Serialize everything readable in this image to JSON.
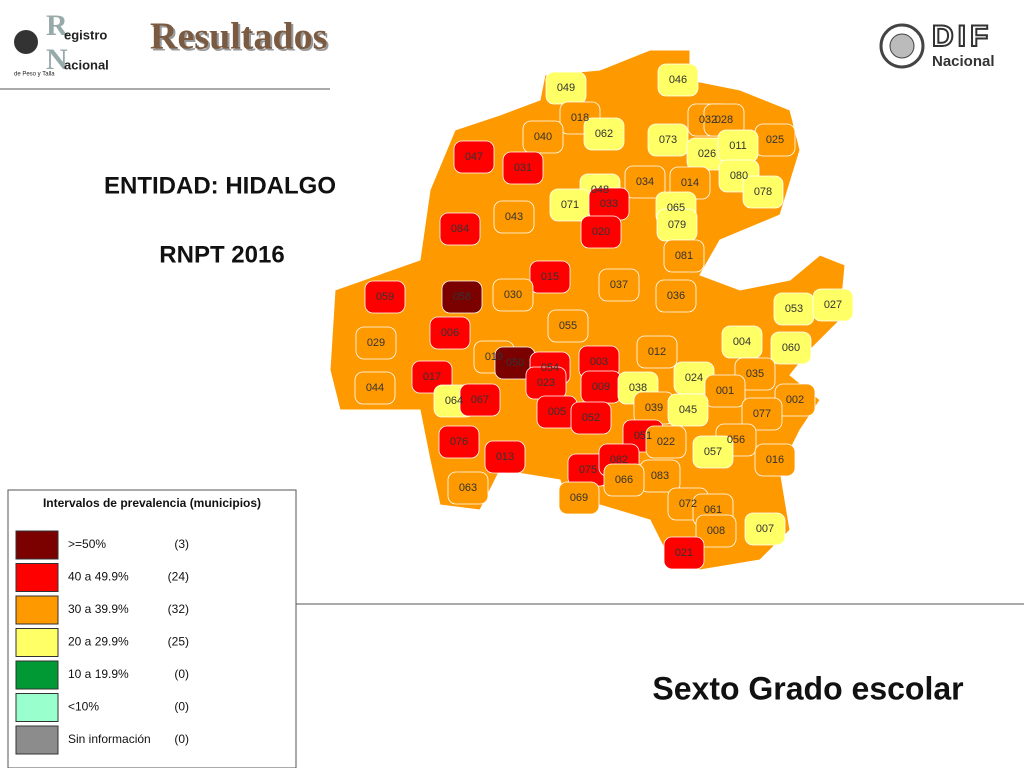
{
  "header": {
    "title": "Resultados",
    "left_logo": {
      "big_r": "R",
      "line1": "egistro",
      "big_n": "N",
      "line2": "acional",
      "tagline": "de Peso y Talla"
    },
    "right_logo": {
      "line1": "DIF",
      "line2": "Nacional"
    }
  },
  "entity": "ENTIDAD: HIDALGO",
  "subtitle": "RNPT 2016",
  "footer": "Sexto Grado escolar",
  "legend": {
    "title": "Intervalos de prevalencia (municipios)",
    "items": [
      {
        "label": ">=50%",
        "count": "(3)",
        "color": "#7b0000"
      },
      {
        "label": "40 a 49.9%",
        "count": "(24)",
        "color": "#ff0000"
      },
      {
        "label": "30 a 39.9%",
        "count": "(32)",
        "color": "#ff9900"
      },
      {
        "label": "20 a 29.9%",
        "count": "(25)",
        "color": "#ffff66"
      },
      {
        "label": "10 a 19.9%",
        "count": "(0)",
        "color": "#009933"
      },
      {
        "label": "<10%",
        "count": "(0)",
        "color": "#99ffcc"
      },
      {
        "label": "Sin información",
        "count": "(0)",
        "color": "#8c8c8c"
      }
    ]
  },
  "map": {
    "municipalities": [
      {
        "code": "049",
        "color": "#ffff66"
      },
      {
        "code": "046",
        "color": "#ffff66"
      },
      {
        "code": "018",
        "color": "#ff9900"
      },
      {
        "code": "062",
        "color": "#ffff66"
      },
      {
        "code": "032",
        "color": "#ff9900"
      },
      {
        "code": "028",
        "color": "#ff9900"
      },
      {
        "code": "025",
        "color": "#ff9900"
      },
      {
        "code": "040",
        "color": "#ff9900"
      },
      {
        "code": "073",
        "color": "#ffff66"
      },
      {
        "code": "026",
        "color": "#ffff66"
      },
      {
        "code": "011",
        "color": "#ffff66"
      },
      {
        "code": "047",
        "color": "#ff0000"
      },
      {
        "code": "031",
        "color": "#ff0000"
      },
      {
        "code": "080",
        "color": "#ffff66"
      },
      {
        "code": "078",
        "color": "#ffff66"
      },
      {
        "code": "048",
        "color": "#ffff66"
      },
      {
        "code": "034",
        "color": "#ff9900"
      },
      {
        "code": "014",
        "color": "#ff9900"
      },
      {
        "code": "071",
        "color": "#ffff66"
      },
      {
        "code": "033",
        "color": "#ff0000"
      },
      {
        "code": "043",
        "color": "#ff9900"
      },
      {
        "code": "065",
        "color": "#ffff66"
      },
      {
        "code": "079",
        "color": "#ffff66"
      },
      {
        "code": "084",
        "color": "#ff0000"
      },
      {
        "code": "020",
        "color": "#ff0000"
      },
      {
        "code": "081",
        "color": "#ff9900"
      },
      {
        "code": "015",
        "color": "#ff0000"
      },
      {
        "code": "037",
        "color": "#ff9900"
      },
      {
        "code": "059",
        "color": "#ff0000"
      },
      {
        "code": "058",
        "color": "#7b0000"
      },
      {
        "code": "030",
        "color": "#ff9900"
      },
      {
        "code": "036",
        "color": "#ff9900"
      },
      {
        "code": "053",
        "color": "#ffff66"
      },
      {
        "code": "027",
        "color": "#ffff66"
      },
      {
        "code": "055",
        "color": "#ff9900"
      },
      {
        "code": "006",
        "color": "#ff0000"
      },
      {
        "code": "029",
        "color": "#ff9900"
      },
      {
        "code": "004",
        "color": "#ffff66"
      },
      {
        "code": "060",
        "color": "#ffff66"
      },
      {
        "code": "012",
        "color": "#ff9900"
      },
      {
        "code": "019",
        "color": "#ff9900"
      },
      {
        "code": "050",
        "color": "#7b0000"
      },
      {
        "code": "003",
        "color": "#ff0000"
      },
      {
        "code": "054",
        "color": "#ff0000"
      },
      {
        "code": "017",
        "color": "#ff0000"
      },
      {
        "code": "024",
        "color": "#ffff66"
      },
      {
        "code": "035",
        "color": "#ff9900"
      },
      {
        "code": "023",
        "color": "#ff0000"
      },
      {
        "code": "044",
        "color": "#ff9900"
      },
      {
        "code": "009",
        "color": "#ff0000"
      },
      {
        "code": "038",
        "color": "#ffff66"
      },
      {
        "code": "001",
        "color": "#ff9900"
      },
      {
        "code": "064",
        "color": "#ffff66"
      },
      {
        "code": "067",
        "color": "#ff0000"
      },
      {
        "code": "002",
        "color": "#ff9900"
      },
      {
        "code": "005",
        "color": "#ff0000"
      },
      {
        "code": "039",
        "color": "#ff9900"
      },
      {
        "code": "045",
        "color": "#ffff66"
      },
      {
        "code": "077",
        "color": "#ff9900"
      },
      {
        "code": "052",
        "color": "#ff0000"
      },
      {
        "code": "076",
        "color": "#ff0000"
      },
      {
        "code": "051",
        "color": "#ff0000"
      },
      {
        "code": "022",
        "color": "#ff9900"
      },
      {
        "code": "056",
        "color": "#ff9900"
      },
      {
        "code": "057",
        "color": "#ffff66"
      },
      {
        "code": "016",
        "color": "#ff9900"
      },
      {
        "code": "013",
        "color": "#ff0000"
      },
      {
        "code": "075",
        "color": "#ff0000"
      },
      {
        "code": "082",
        "color": "#ff0000"
      },
      {
        "code": "083",
        "color": "#ff9900"
      },
      {
        "code": "066",
        "color": "#ff9900"
      },
      {
        "code": "063",
        "color": "#ff9900"
      },
      {
        "code": "069",
        "color": "#ff9900"
      },
      {
        "code": "072",
        "color": "#ff9900"
      },
      {
        "code": "061",
        "color": "#ff9900"
      },
      {
        "code": "008",
        "color": "#ff9900"
      },
      {
        "code": "007",
        "color": "#ffff66"
      },
      {
        "code": "021",
        "color": "#ff0000"
      }
    ]
  }
}
